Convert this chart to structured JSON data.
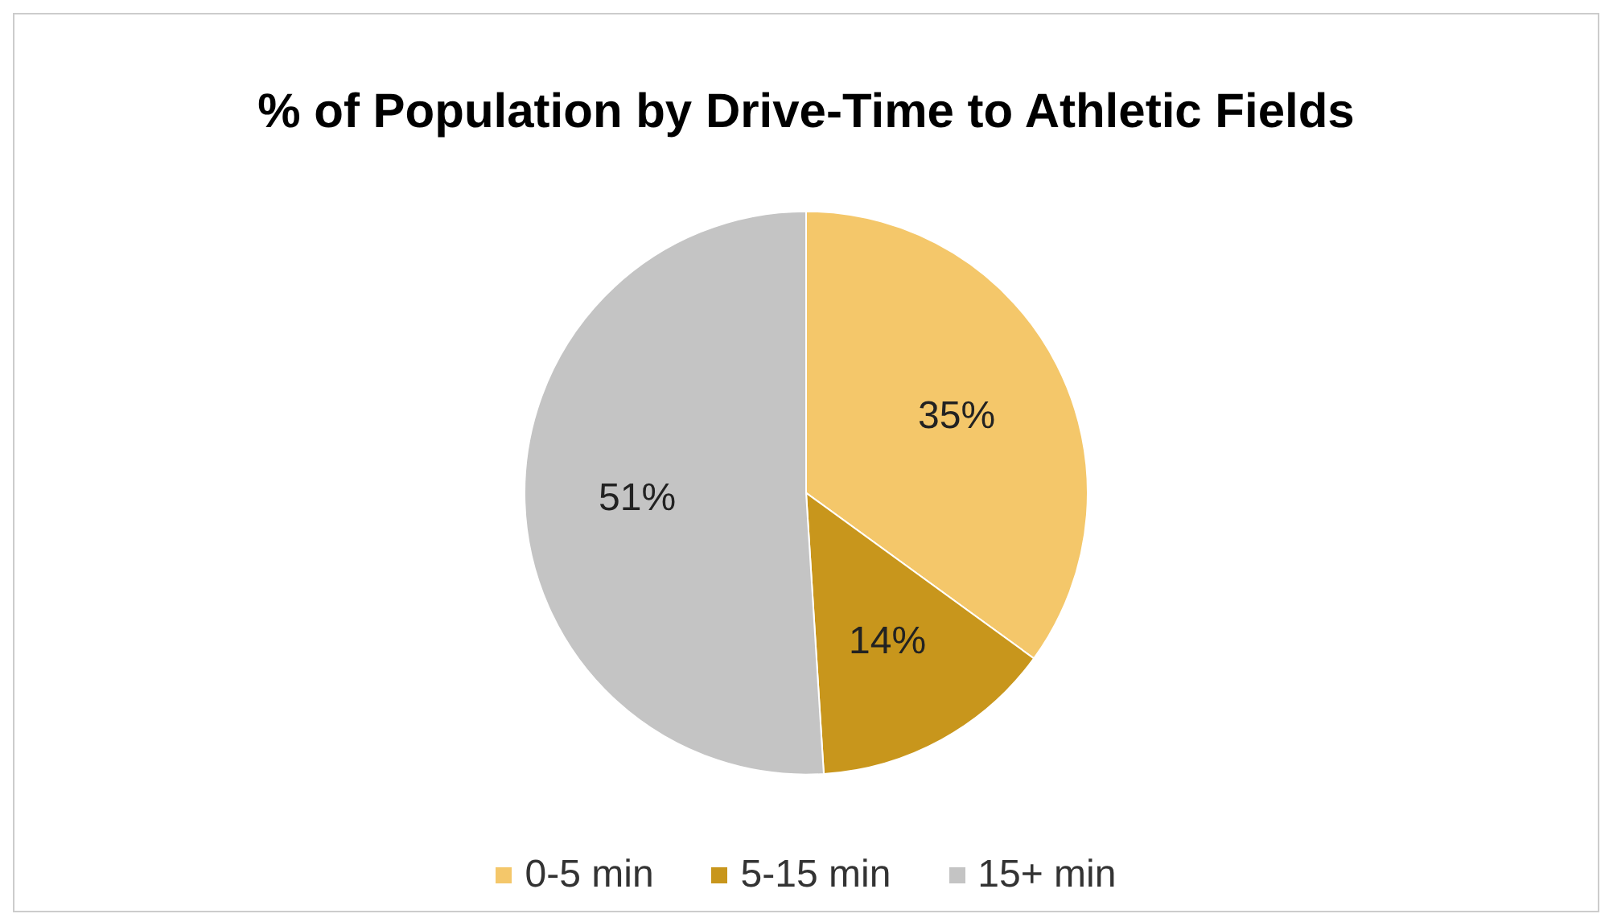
{
  "chart_data": {
    "type": "pie",
    "title": "% of Population by Drive-Time to Athletic Fields",
    "categories": [
      "0-5 min",
      "5-15 min",
      "15+ min"
    ],
    "values": [
      35,
      14,
      51
    ],
    "colors": [
      "#f4c76a",
      "#c8961c",
      "#c4c4c4"
    ],
    "value_labels": [
      "35%",
      "14%",
      "51%"
    ],
    "legend": "bottom"
  }
}
